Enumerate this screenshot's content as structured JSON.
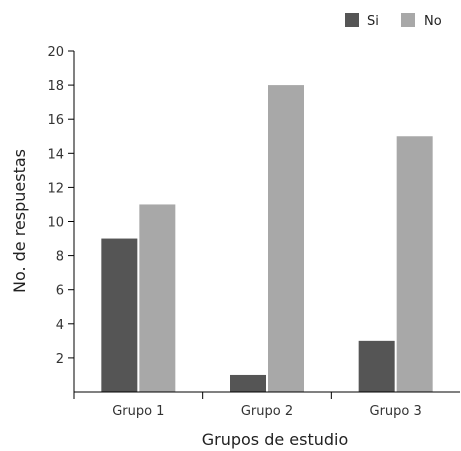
{
  "chart_data": {
    "type": "bar",
    "categories": [
      "Grupo 1",
      "Grupo 2",
      "Grupo 3"
    ],
    "series": [
      {
        "name": "Si",
        "color": "#555555",
        "values": [
          9,
          1,
          3
        ]
      },
      {
        "name": "No",
        "color": "#a8a8a8",
        "values": [
          11,
          18,
          15
        ]
      }
    ],
    "xlabel": "Grupos de estudio",
    "ylabel": "No. de respuestas",
    "ylim": [
      0,
      20
    ],
    "yticks": [
      2,
      4,
      6,
      8,
      10,
      12,
      14,
      16,
      18,
      20
    ],
    "grid": false,
    "legend_position": "top-right"
  }
}
